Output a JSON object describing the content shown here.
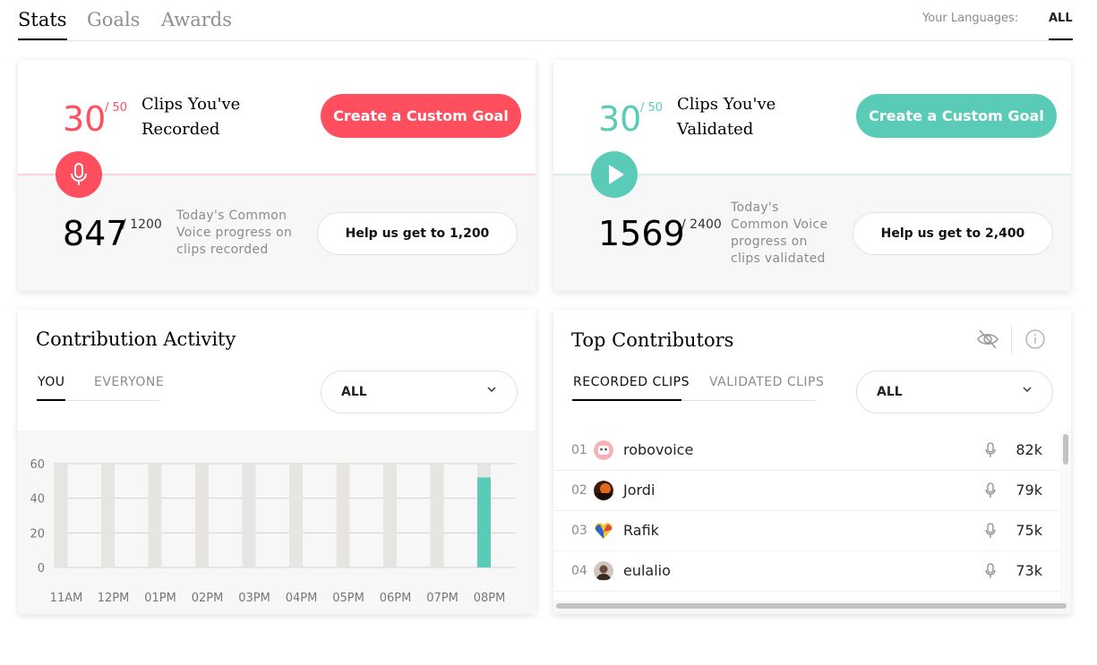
{
  "tabs": [
    "Stats",
    "Goals",
    "Awards"
  ],
  "languages": {
    "label": "Your Languages:",
    "value": "ALL"
  },
  "recorded": {
    "goal_value": "30",
    "goal_target": "/ 50",
    "title": "Clips You've Recorded",
    "cta": "Create a Custom Goal",
    "progress_value": "847",
    "progress_target": "/ 1200",
    "progress_text": "Today's Common Voice progress on clips recorded",
    "help": "Help us get to 1,200",
    "accent": "#ff4f5e"
  },
  "validated": {
    "goal_value": "30",
    "goal_target": "/ 50",
    "title": "Clips You've Validated",
    "cta": "Create a Custom Goal",
    "progress_value": "1569",
    "progress_target": "/ 2400",
    "progress_text": "Today's Common Voice progress on clips validated",
    "help": "Help us get to 2,400",
    "accent": "#59cbb7"
  },
  "activity": {
    "title": "Contribution Activity",
    "tabs": [
      "YOU",
      "EVERYONE"
    ],
    "dropdown": "ALL"
  },
  "chart_data": {
    "type": "bar",
    "categories": [
      "11AM",
      "12PM",
      "01PM",
      "02PM",
      "03PM",
      "04PM",
      "05PM",
      "06PM",
      "07PM",
      "08PM"
    ],
    "y_ticks": [
      0,
      20,
      40,
      60
    ],
    "ylim": [
      0,
      60
    ],
    "series": [
      {
        "values": [
          0,
          0,
          0,
          0,
          0,
          0,
          0,
          0,
          0,
          52
        ],
        "color": "#59cbb7"
      }
    ],
    "background_bar_color": "#e7e5e1",
    "grid": true
  },
  "contributors": {
    "title": "Top Contributors",
    "tabs": [
      "RECORDED CLIPS",
      "VALIDATED CLIPS"
    ],
    "dropdown": "ALL",
    "icons": [
      "eye-off-icon",
      "info-icon"
    ],
    "rows": [
      {
        "rank": "01",
        "name": "robovoice",
        "count": "82k",
        "avatar": "robot-avatar"
      },
      {
        "rank": "02",
        "name": "Jordi",
        "count": "79k",
        "avatar": "sunset-avatar"
      },
      {
        "rank": "03",
        "name": "Rafik",
        "count": "75k",
        "avatar": "heart-avatar"
      },
      {
        "rank": "04",
        "name": "eulalio",
        "count": "73k",
        "avatar": "person-avatar"
      }
    ]
  }
}
